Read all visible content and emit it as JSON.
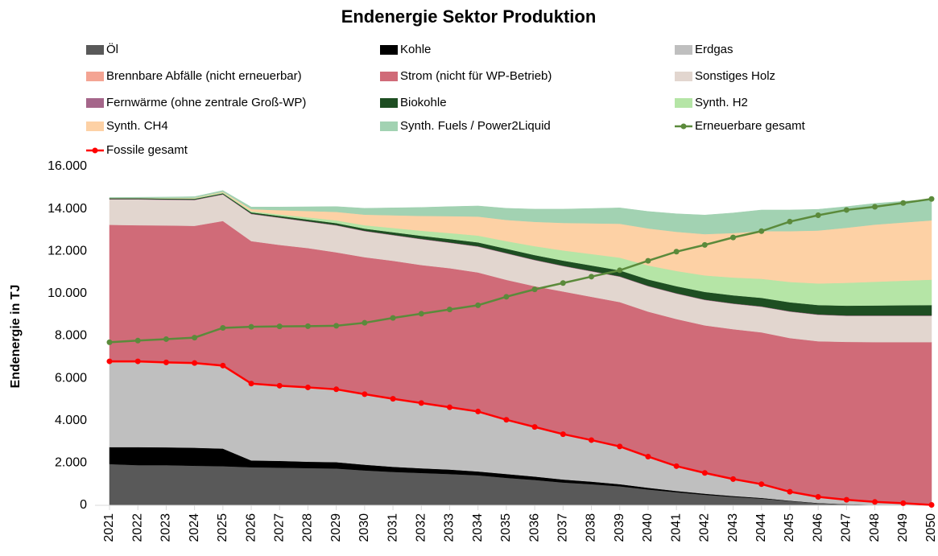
{
  "chart_data": {
    "type": "area",
    "title": "Endenergie Sektor Produktion",
    "y_label": "Endenergie in TJ",
    "stacked": true,
    "categories": [
      "2021",
      "2022",
      "2023",
      "2024",
      "2025",
      "2026",
      "2027",
      "2028",
      "2029",
      "2030",
      "2031",
      "2032",
      "2033",
      "2034",
      "2035",
      "2036",
      "2037",
      "2038",
      "2039",
      "2040",
      "2041",
      "2042",
      "2043",
      "2044",
      "2045",
      "2046",
      "2047",
      "2048",
      "2049",
      "2050"
    ],
    "ylim": [
      0,
      16000
    ],
    "yticks": [
      0,
      {
        "value": 2000,
        "label": "2.000"
      },
      {
        "value": 4000,
        "label": "4.000"
      },
      {
        "value": 6000,
        "label": "6.000"
      },
      {
        "value": 8000,
        "label": "8.000"
      },
      {
        "value": 10000,
        "label": "10.000"
      },
      {
        "value": 12000,
        "label": "12.000"
      },
      {
        "value": 14000,
        "label": "14.000"
      },
      {
        "value": 16000,
        "label": "16.000"
      }
    ],
    "series": [
      {
        "name": "Öl",
        "type": "area",
        "color": "#595959",
        "values": [
          1950,
          1900,
          1900,
          1870,
          1850,
          1800,
          1780,
          1760,
          1740,
          1650,
          1580,
          1530,
          1480,
          1420,
          1300,
          1200,
          1080,
          1000,
          900,
          750,
          620,
          500,
          400,
          320,
          200,
          100,
          50,
          20,
          10,
          0
        ]
      },
      {
        "name": "Kohle",
        "type": "area",
        "color": "#000000",
        "values": [
          800,
          850,
          840,
          850,
          830,
          320,
          320,
          300,
          300,
          270,
          240,
          220,
          210,
          180,
          180,
          160,
          140,
          120,
          100,
          80,
          60,
          50,
          40,
          30,
          20,
          10,
          5,
          2,
          1,
          0
        ]
      },
      {
        "name": "Erdgas",
        "type": "area",
        "color": "#bfbfbf",
        "values": [
          3990,
          3990,
          3950,
          3940,
          3860,
          3580,
          3500,
          3460,
          3390,
          3290,
          3170,
          3040,
          2910,
          2800,
          2530,
          2320,
          2120,
          1940,
          1770,
          1460,
          1160,
          970,
          800,
          650,
          420,
          290,
          205,
          138,
          89,
          20
        ]
      },
      {
        "name": "Brennbare Abfälle (nicht erneuerbar)",
        "type": "area",
        "color": "#f4a493",
        "values": [
          60,
          60,
          60,
          60,
          60,
          50,
          50,
          50,
          50,
          40,
          40,
          40,
          30,
          30,
          30,
          20,
          20,
          20,
          10,
          10,
          10,
          10,
          0,
          0,
          0,
          0,
          0,
          0,
          0,
          0
        ]
      },
      {
        "name": "Strom (nicht für WP-Betrieb)",
        "type": "area",
        "color": "#d06b78",
        "values": [
          6450,
          6430,
          6470,
          6480,
          6830,
          6730,
          6650,
          6580,
          6470,
          6470,
          6520,
          6520,
          6570,
          6570,
          6610,
          6650,
          6740,
          6770,
          6820,
          6850,
          6950,
          6970,
          7080,
          7170,
          7260,
          7350,
          7460,
          7550,
          7610,
          7690
        ]
      },
      {
        "name": "Sonstiges Holz",
        "type": "area",
        "color": "#e2d6cf",
        "values": [
          1200,
          1220,
          1210,
          1220,
          1250,
          1280,
          1280,
          1250,
          1270,
          1230,
          1210,
          1220,
          1200,
          1220,
          1250,
          1230,
          1200,
          1200,
          1200,
          1200,
          1200,
          1200,
          1200,
          1210,
          1250,
          1250,
          1230,
          1240,
          1240,
          1240
        ]
      },
      {
        "name": "Fernwärme (ohne zentrale Groß-WP)",
        "type": "area",
        "color": "#a5668a",
        "values": [
          20,
          20,
          20,
          20,
          20,
          20,
          20,
          20,
          20,
          20,
          20,
          20,
          20,
          20,
          20,
          20,
          20,
          20,
          20,
          20,
          20,
          20,
          20,
          20,
          20,
          20,
          20,
          20,
          20,
          20
        ]
      },
      {
        "name": "Biokohle",
        "type": "area",
        "color": "#1e4e22",
        "values": [
          40,
          40,
          40,
          40,
          40,
          60,
          70,
          80,
          90,
          100,
          120,
          140,
          160,
          180,
          200,
          220,
          240,
          260,
          280,
          300,
          330,
          360,
          380,
          400,
          420,
          440,
          460,
          470,
          480,
          490
        ]
      },
      {
        "name": "Synth. H2",
        "type": "area",
        "color": "#b5e5a6",
        "values": [
          10,
          10,
          20,
          30,
          40,
          50,
          70,
          100,
          130,
          160,
          200,
          240,
          280,
          320,
          360,
          420,
          480,
          540,
          600,
          660,
          720,
          780,
          840,
          900,
          960,
          1020,
          1080,
          1120,
          1160,
          1200
        ]
      },
      {
        "name": "Synth. CH4",
        "type": "area",
        "color": "#fdd1a5",
        "values": [
          0,
          0,
          10,
          20,
          30,
          100,
          200,
          300,
          400,
          500,
          600,
          700,
          800,
          900,
          1000,
          1150,
          1300,
          1450,
          1600,
          1750,
          1850,
          1950,
          2100,
          2250,
          2400,
          2500,
          2600,
          2700,
          2750,
          2800
        ]
      },
      {
        "name": "Synth. Fuels / Power2Liquid",
        "type": "area",
        "color": "#a2d2b2",
        "values": [
          20,
          30,
          40,
          50,
          60,
          100,
          150,
          200,
          250,
          300,
          350,
          400,
          450,
          500,
          550,
          600,
          650,
          700,
          750,
          800,
          850,
          900,
          950,
          1000,
          1000,
          1000,
          1000,
          1000,
          1000,
          1000
        ]
      },
      {
        "name": "Erneuerbare gesamt",
        "type": "line",
        "color": "#5b8a3b",
        "values": [
          7700,
          7780,
          7850,
          7920,
          8380,
          8430,
          8450,
          8460,
          8480,
          8620,
          8850,
          9050,
          9250,
          9450,
          9850,
          10200,
          10500,
          10800,
          11100,
          11550,
          11980,
          12300,
          12650,
          12950,
          13400,
          13700,
          13950,
          14100,
          14280,
          14470
        ]
      },
      {
        "name": "Fossile gesamt",
        "type": "line",
        "color": "#ff0000",
        "values": [
          6800,
          6800,
          6750,
          6720,
          6600,
          5750,
          5650,
          5570,
          5480,
          5250,
          5030,
          4830,
          4630,
          4430,
          4040,
          3700,
          3360,
          3080,
          2780,
          2300,
          1850,
          1530,
          1240,
          1000,
          640,
          400,
          260,
          160,
          100,
          20
        ]
      }
    ]
  }
}
